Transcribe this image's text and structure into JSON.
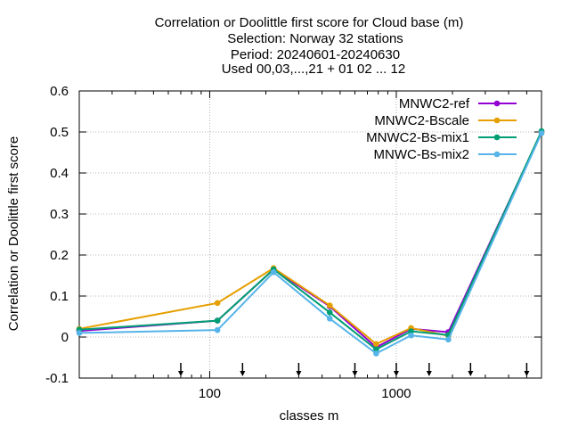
{
  "chart_data": {
    "type": "line",
    "title_lines": [
      "Correlation or Doolittle first score  for Cloud base (m)",
      "Selection: Norway     32 stations",
      "Period: 20240601-20240630",
      "Used 00,03,...,21 + 01 02 ... 12"
    ],
    "xlabel": "classes m",
    "ylabel": "Correlation or Doolittle first score",
    "x_scale": "log",
    "xlim": [
      20,
      6000
    ],
    "ylim": [
      -0.1,
      0.6
    ],
    "x_ticks": [
      100,
      1000
    ],
    "x_tick_labels": [
      "100",
      "1000"
    ],
    "y_ticks": [
      -0.1,
      0,
      0.1,
      0.2,
      0.3,
      0.4,
      0.5,
      0.6
    ],
    "y_tick_labels": [
      "-0.1",
      "0",
      "0.1",
      "0.2",
      "0.3",
      "0.4",
      "0.5",
      "0.6"
    ],
    "grid": true,
    "legend_position": "top-right",
    "class_boundaries": [
      70,
      150,
      300,
      600,
      1000,
      1500,
      2500,
      5000
    ],
    "series": [
      {
        "name": "MNWC2-ref",
        "color": "#9400d3",
        "x": [
          20,
          110,
          220,
          440,
          780,
          1200,
          1900,
          6000
        ],
        "y": [
          0.015,
          0.04,
          0.165,
          0.075,
          -0.025,
          0.02,
          0.012,
          0.5
        ]
      },
      {
        "name": "MNWC2-Bscale",
        "color": "#e69f00",
        "x": [
          20,
          110,
          220,
          440,
          780,
          1200,
          1900,
          6000
        ],
        "y": [
          0.02,
          0.083,
          0.168,
          0.077,
          -0.017,
          0.022,
          0.003,
          0.5
        ]
      },
      {
        "name": "MNWC2-Bs-mix1",
        "color": "#009e73",
        "x": [
          20,
          110,
          220,
          440,
          780,
          1200,
          1900,
          6000
        ],
        "y": [
          0.018,
          0.04,
          0.165,
          0.06,
          -0.03,
          0.014,
          0.005,
          0.502
        ]
      },
      {
        "name": "MNWC-Bs-mix2",
        "color": "#56b4e9",
        "x": [
          20,
          110,
          220,
          440,
          780,
          1200,
          1900,
          6000
        ],
        "y": [
          0.01,
          0.017,
          0.158,
          0.045,
          -0.04,
          0.004,
          -0.006,
          0.497
        ]
      }
    ]
  }
}
